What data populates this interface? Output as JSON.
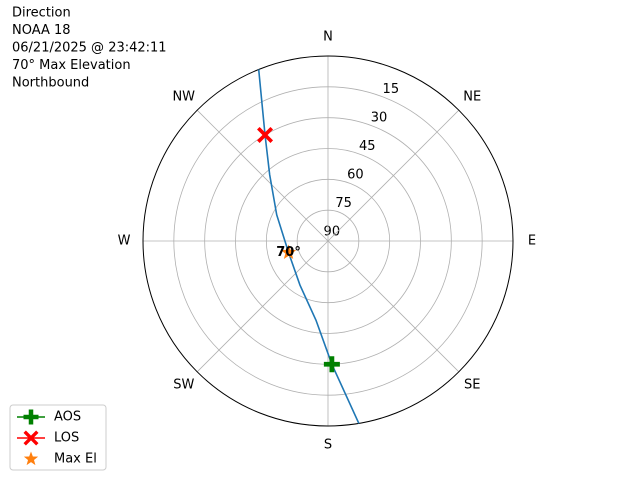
{
  "chart_data": {
    "type": "polar",
    "title_lines": [
      "Direction",
      "NOAA 18",
      "06/21/2025 @ 23:42:11",
      "70° Max Elevation",
      "Northbound"
    ],
    "xticks": [
      {
        "value": 0,
        "label": "N"
      },
      {
        "value": 45,
        "label": "NE"
      },
      {
        "value": 90,
        "label": "E"
      },
      {
        "value": 135,
        "label": "SE"
      },
      {
        "value": 180,
        "label": "S"
      },
      {
        "value": 225,
        "label": "SW"
      },
      {
        "value": 270,
        "label": "W"
      },
      {
        "value": 315,
        "label": "NW"
      }
    ],
    "ylim": [
      90,
      0
    ],
    "yticks": [
      90,
      75,
      60,
      45,
      30,
      15
    ],
    "grid": true,
    "legend": "lower left",
    "track": {
      "color": "#1f77b4",
      "x": [
        170.4,
        178.2,
        188.6,
        212.5,
        253.7,
        297,
        318.7,
        329.3,
        338
      ],
      "values": [
        0,
        30,
        51,
        64.6,
        70,
        62,
        47,
        30,
        0
      ]
    },
    "series": [
      {
        "name": "AOS",
        "color": "#008000",
        "marker": "plus",
        "x": [
          178.2
        ],
        "values": [
          30
        ]
      },
      {
        "name": "LOS",
        "color": "#ff0000",
        "marker": "x",
        "x": [
          329.3
        ],
        "values": [
          30
        ]
      },
      {
        "name": "Max El",
        "color": "#ff7f0e",
        "marker": "star",
        "x": [
          253.7
        ],
        "values": [
          70
        ],
        "value_labels": [
          "70°"
        ]
      }
    ]
  }
}
